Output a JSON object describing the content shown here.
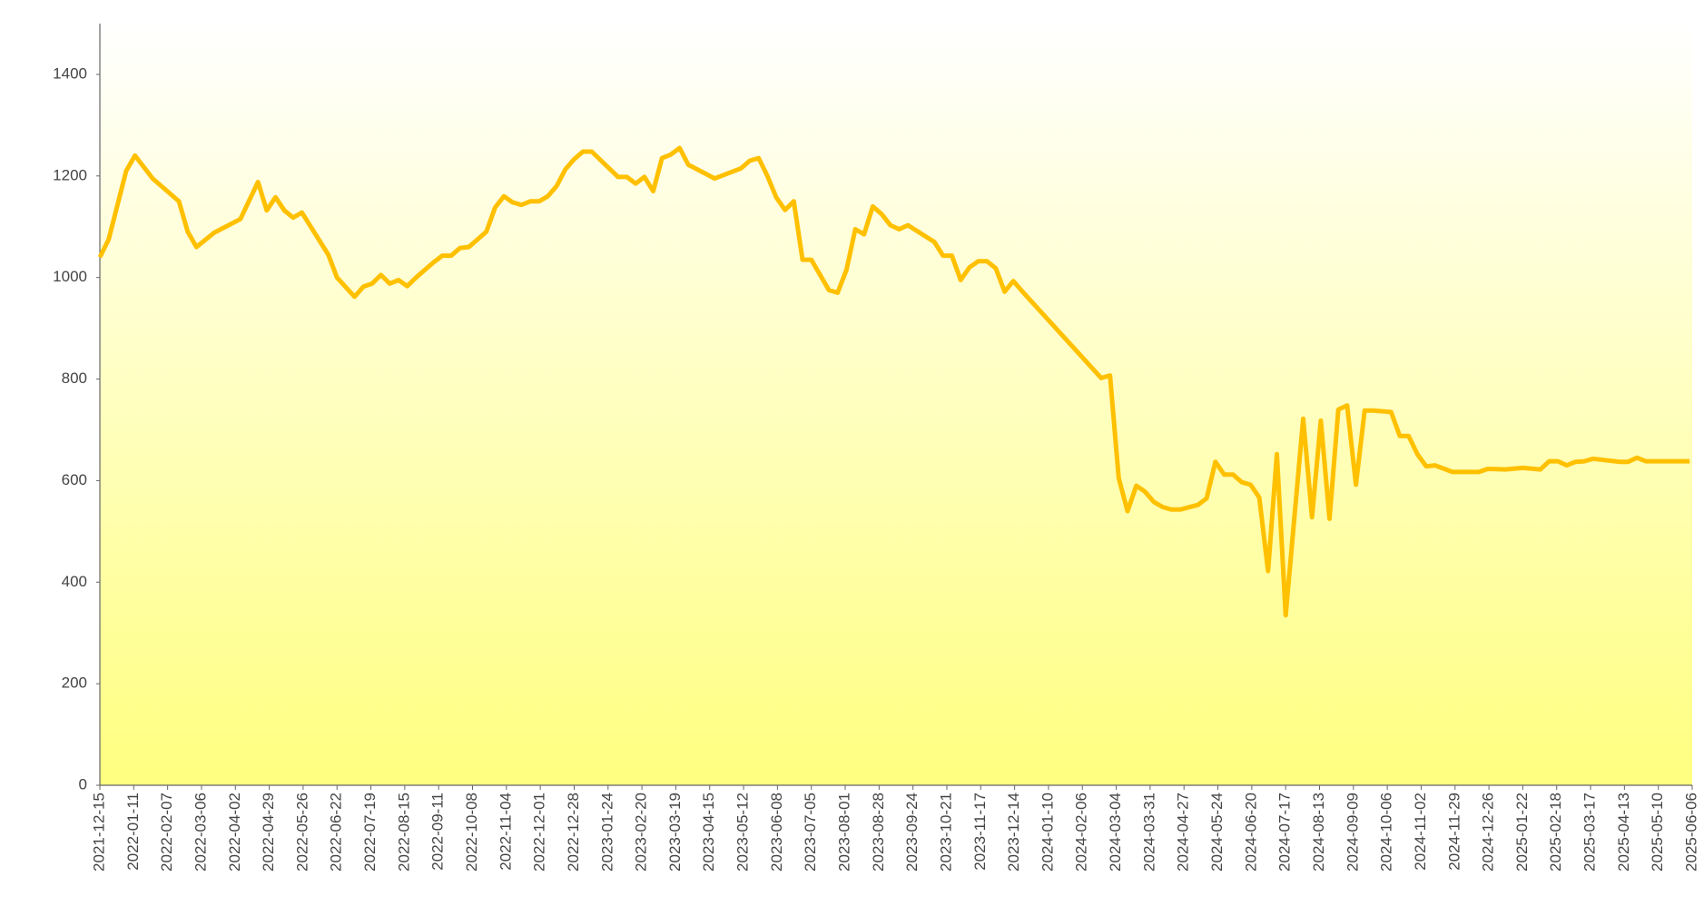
{
  "chart_data": {
    "type": "line",
    "color": "#ffc000",
    "x": [
      "2021-12-15",
      "2021-12-22",
      "2022-01-05",
      "2022-01-12",
      "2022-01-26",
      "2022-02-16",
      "2022-02-23",
      "2022-03-02",
      "2022-03-16",
      "2022-04-06",
      "2022-04-20",
      "2022-04-27",
      "2022-05-04",
      "2022-05-11",
      "2022-05-18",
      "2022-05-25",
      "2022-06-15",
      "2022-06-22",
      "2022-07-06",
      "2022-07-13",
      "2022-07-20",
      "2022-07-27",
      "2022-08-03",
      "2022-08-10",
      "2022-08-17",
      "2022-08-24",
      "2022-09-07",
      "2022-09-14",
      "2022-09-21",
      "2022-09-28",
      "2022-10-05",
      "2022-10-19",
      "2022-10-26",
      "2022-11-02",
      "2022-11-09",
      "2022-11-16",
      "2022-11-23",
      "2022-11-30",
      "2022-12-07",
      "2022-12-14",
      "2022-12-21",
      "2022-12-28",
      "2023-01-04",
      "2023-01-11",
      "2023-02-01",
      "2023-02-08",
      "2023-02-15",
      "2023-02-22",
      "2023-03-01",
      "2023-03-08",
      "2023-03-15",
      "2023-03-22",
      "2023-03-29",
      "2023-04-19",
      "2023-05-10",
      "2023-05-17",
      "2023-05-24",
      "2023-05-31",
      "2023-06-07",
      "2023-06-14",
      "2023-06-21",
      "2023-06-28",
      "2023-07-05",
      "2023-07-12",
      "2023-07-19",
      "2023-07-26",
      "2023-08-02",
      "2023-08-09",
      "2023-08-16",
      "2023-08-23",
      "2023-08-30",
      "2023-09-06",
      "2023-09-13",
      "2023-09-20",
      "2023-10-11",
      "2023-10-18",
      "2023-10-25",
      "2023-11-01",
      "2023-11-08",
      "2023-11-15",
      "2023-11-22",
      "2023-11-29",
      "2023-12-06",
      "2023-12-13",
      "2023-12-20",
      "2024-02-21",
      "2024-02-28",
      "2024-03-06",
      "2024-03-13",
      "2024-03-20",
      "2024-03-27",
      "2024-04-03",
      "2024-04-10",
      "2024-04-17",
      "2024-04-24",
      "2024-05-08",
      "2024-05-15",
      "2024-05-22",
      "2024-05-29",
      "2024-06-05",
      "2024-06-12",
      "2024-06-19",
      "2024-06-26",
      "2024-07-03",
      "2024-07-10",
      "2024-07-17",
      "2024-07-31",
      "2024-08-07",
      "2024-08-14",
      "2024-08-21",
      "2024-08-28",
      "2024-09-04",
      "2024-09-11",
      "2024-09-18",
      "2024-09-25",
      "2024-10-09",
      "2024-10-16",
      "2024-10-23",
      "2024-10-30",
      "2024-11-06",
      "2024-11-13",
      "2024-11-27",
      "2024-12-18",
      "2024-12-25",
      "2025-01-08",
      "2025-01-22",
      "2025-02-05",
      "2025-02-12",
      "2025-02-19",
      "2025-02-26",
      "2025-03-05",
      "2025-03-12",
      "2025-03-19",
      "2025-04-09",
      "2025-04-16",
      "2025-04-23",
      "2025-04-30",
      "2025-06-04"
    ],
    "values": [
      1040,
      1075,
      1210,
      1240,
      1195,
      1150,
      1090,
      1060,
      1088,
      1115,
      1188,
      1132,
      1158,
      1132,
      1118,
      1128,
      1045,
      1000,
      962,
      982,
      988,
      1005,
      988,
      995,
      983,
      1000,
      1030,
      1043,
      1043,
      1058,
      1060,
      1090,
      1138,
      1160,
      1148,
      1143,
      1150,
      1150,
      1160,
      1180,
      1213,
      1233,
      1248,
      1248,
      1198,
      1198,
      1185,
      1198,
      1170,
      1235,
      1242,
      1255,
      1222,
      1195,
      1215,
      1230,
      1235,
      1200,
      1158,
      1133,
      1150,
      1035,
      1035,
      1005,
      975,
      970,
      1015,
      1095,
      1085,
      1140,
      1125,
      1103,
      1095,
      1103,
      1070,
      1043,
      1043,
      995,
      1020,
      1032,
      1032,
      1018,
      972,
      993,
      973,
      802,
      807,
      605,
      540,
      590,
      578,
      558,
      548,
      543,
      543,
      552,
      565,
      637,
      612,
      612,
      597,
      592,
      567,
      422,
      652,
      335,
      722,
      528,
      718,
      525,
      740,
      748,
      592,
      738,
      738,
      735,
      688,
      688,
      652,
      628,
      630,
      617,
      617,
      623,
      622,
      625,
      622,
      638,
      638,
      630,
      637,
      638,
      643,
      637,
      637,
      645,
      638,
      638
    ],
    "xlim": [
      "2021-12-15",
      "2025-06-06"
    ],
    "xticks": [
      "2021-12-15",
      "2022-01-11",
      "2022-02-07",
      "2022-03-06",
      "2022-04-02",
      "2022-04-29",
      "2022-05-26",
      "2022-06-22",
      "2022-07-19",
      "2022-08-15",
      "2022-09-11",
      "2022-10-08",
      "2022-11-04",
      "2022-12-01",
      "2022-12-28",
      "2023-01-24",
      "2023-02-20",
      "2023-03-19",
      "2023-04-15",
      "2023-05-12",
      "2023-06-08",
      "2023-07-05",
      "2023-08-01",
      "2023-08-28",
      "2023-09-24",
      "2023-10-21",
      "2023-11-17",
      "2023-12-14",
      "2024-01-10",
      "2024-02-06",
      "2024-03-04",
      "2024-03-31",
      "2024-04-27",
      "2024-05-24",
      "2024-06-20",
      "2024-07-17",
      "2024-08-13",
      "2024-09-09",
      "2024-10-06",
      "2024-11-02",
      "2024-11-29",
      "2024-12-26",
      "2025-01-22",
      "2025-02-18",
      "2025-03-17",
      "2025-04-13",
      "2025-05-10",
      "2025-06-06"
    ],
    "ylim": [
      0,
      1500
    ],
    "yticks": [
      0,
      200,
      400,
      600,
      800,
      1000,
      1200,
      1400
    ]
  }
}
